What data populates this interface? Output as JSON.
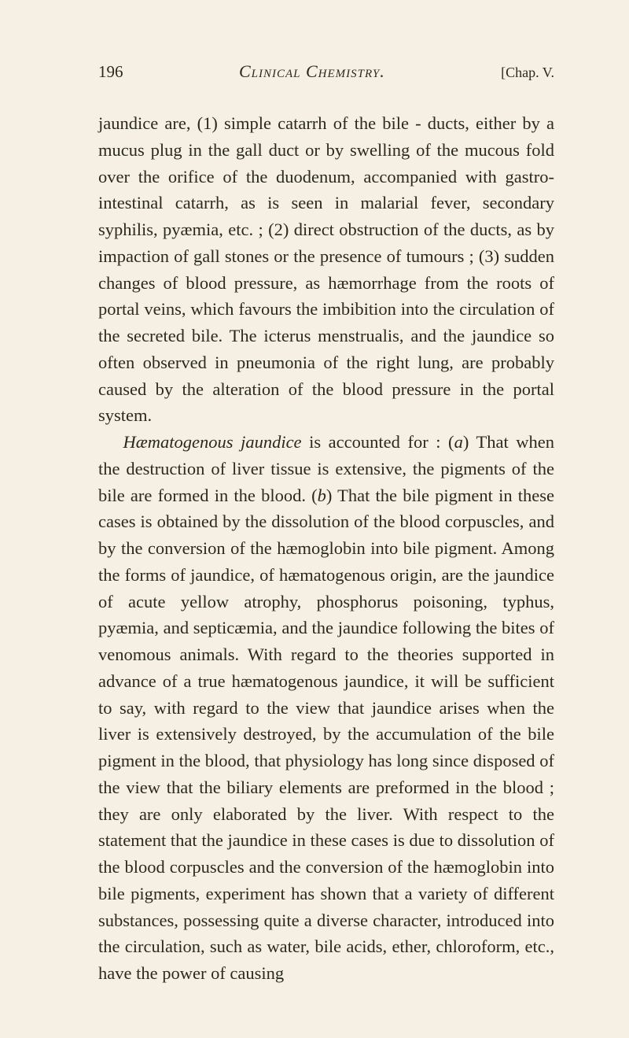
{
  "header": {
    "pageNumber": "196",
    "title": "Clinical Chemistry.",
    "chapterRef": "[Chap. V."
  },
  "paragraphs": [
    {
      "indent": false,
      "segments": [
        {
          "text": "jaundice are, (1) simple catarrh of the bile - ducts, either by a mucus plug in the gall duct or by swelling of the mucous fold over the orifice of the duodenum, accompanied with gastro-intestinal catarrh, as is seen in malarial fever, secondary syphilis, pyæmia, etc. ; (2) direct obstruction of the ducts, as by impaction of gall stones or the presence of tumours ; (3) sudden changes of blood pressure, as hæmorrhage from the roots of portal veins, which favours the imbibition into the circulation of the secreted bile. The icterus menstrualis, and the jaundice so often observed in pneumonia of the right lung, are probably caused by the alteration of the blood pressure in the portal system.",
          "italic": false
        }
      ]
    },
    {
      "indent": true,
      "segments": [
        {
          "text": "Hæmatogenous jaundice",
          "italic": true
        },
        {
          "text": " is accounted for : (",
          "italic": false
        },
        {
          "text": "a",
          "italic": true
        },
        {
          "text": ") That when the destruction of liver tissue is extensive, the pigments of the bile are formed in the blood. (",
          "italic": false
        },
        {
          "text": "b",
          "italic": true
        },
        {
          "text": ") That the bile pigment in these cases is obtained by the dissolution of the blood corpuscles, and by the conversion of the hæmoglobin into bile pigment. Among the forms of jaundice, of hæmatogenous origin, are the jaundice of acute yellow atrophy, phosphorus poisoning, typhus, pyæmia, and septicæmia, and the jaundice following the bites of venomous animals. With regard to the theories supported in advance of a true hæmatogenous jaundice, it will be sufficient to say, with regard to the view that jaundice arises when the liver is extensively destroyed, by the accumulation of the bile pigment in the blood, that physiology has long since disposed of the view that the biliary elements are preformed in the blood ; they are only elaborated by the liver. With respect to the statement that the jaundice in these cases is due to dissolution of the blood corpuscles and the conversion of the hæmoglobin into bile pigments, experiment has shown that a variety of different substances, possessing quite a diverse character, introduced into the circulation, such as water, bile acids, ether, chloroform, etc., have the power of causing",
          "italic": false
        }
      ]
    }
  ]
}
